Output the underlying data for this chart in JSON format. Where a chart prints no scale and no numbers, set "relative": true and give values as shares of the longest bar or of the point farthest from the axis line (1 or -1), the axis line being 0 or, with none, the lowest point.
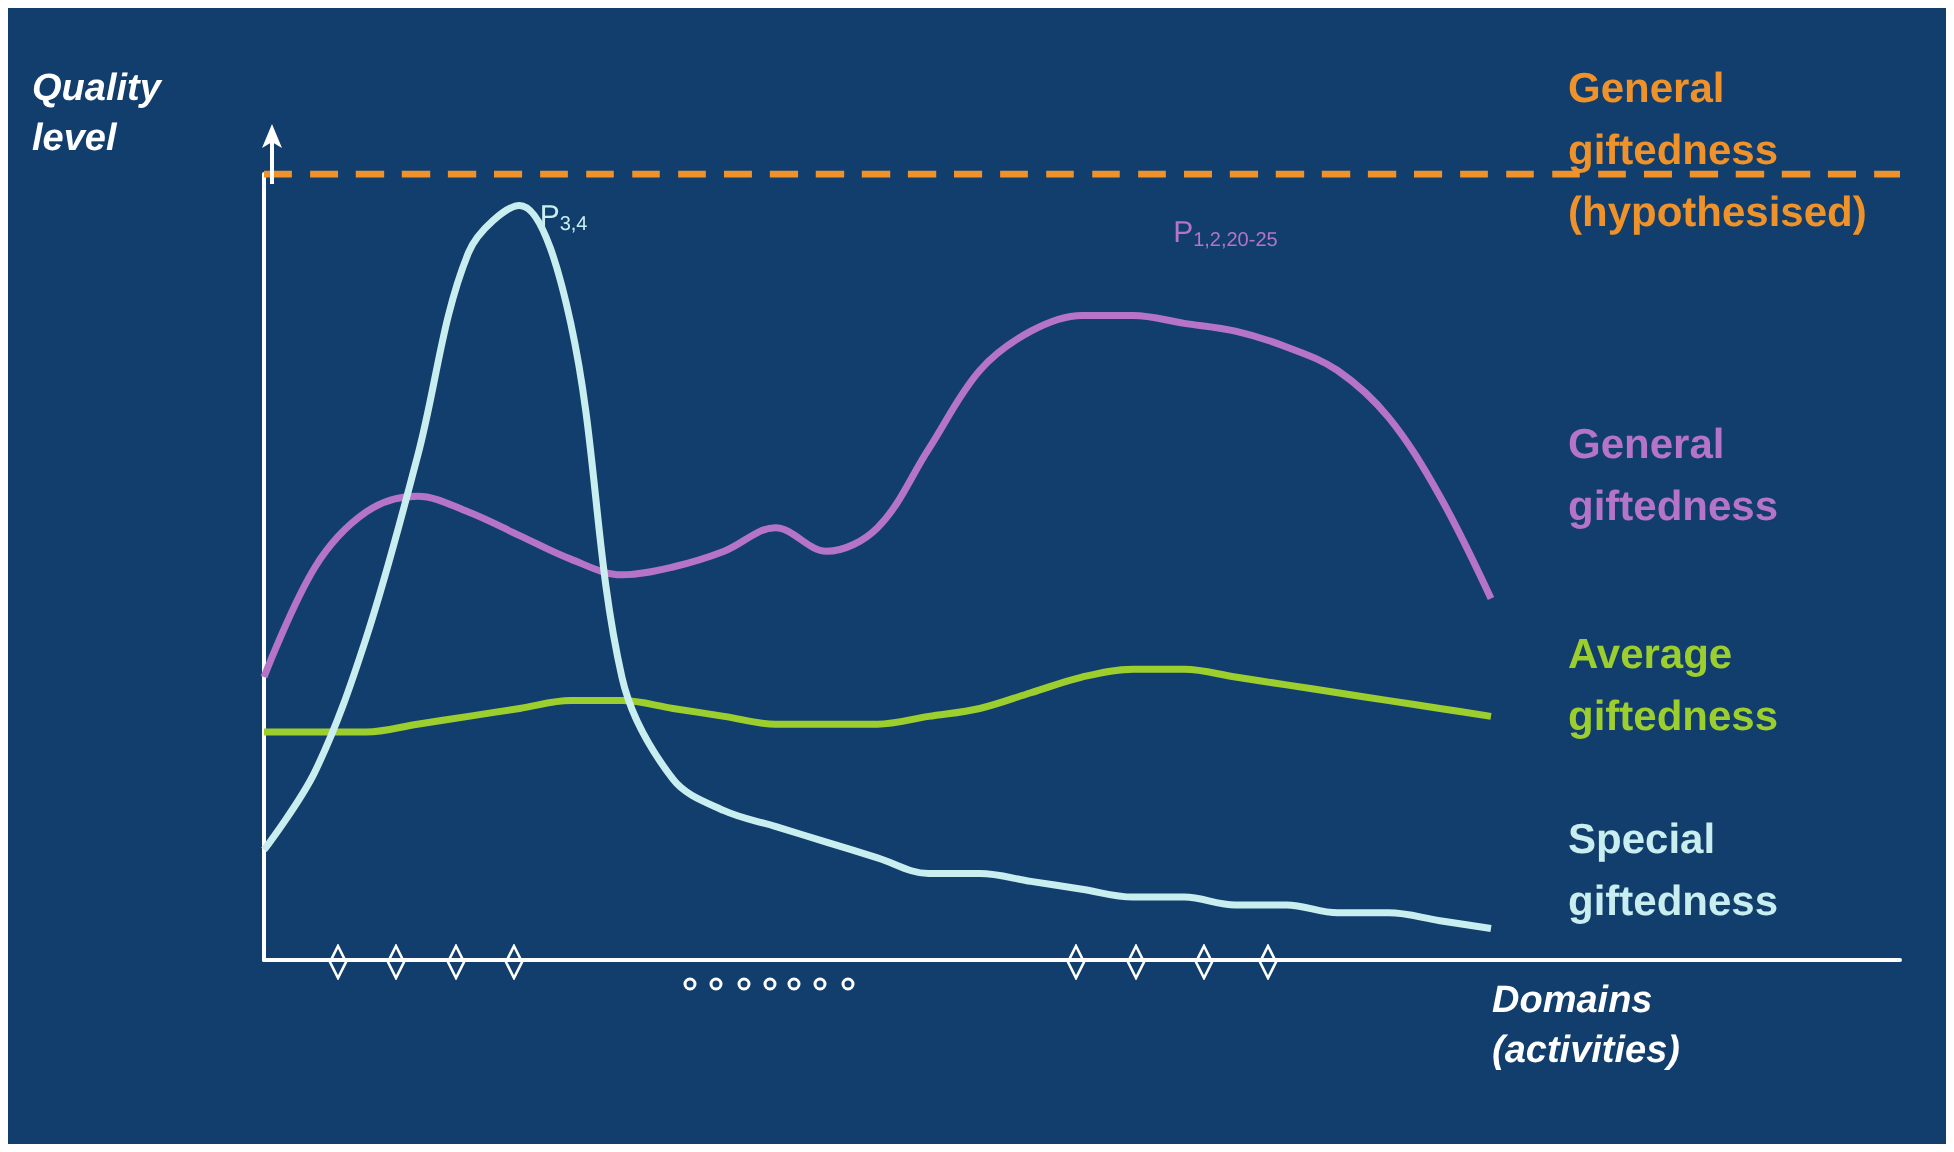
{
  "chart_data": {
    "type": "line",
    "relative": true,
    "xlabel": "Domains (activities)",
    "ylabel": "Quality level",
    "legend": false,
    "grid": false,
    "marker": "none",
    "categories": [
      null,
      null,
      null,
      null,
      null,
      null,
      null,
      null,
      null,
      null,
      null,
      null,
      null,
      null,
      null,
      null,
      null,
      null,
      null,
      null,
      null,
      null,
      null,
      null,
      null,
      null,
      null,
      null,
      null,
      null,
      null,
      null,
      null
    ],
    "series": [
      {
        "name": "General giftedness (hypothesised)",
        "color": "#f0922a",
        "line_style": "dashed",
        "values": [
          1,
          1,
          1,
          1,
          1,
          1,
          1,
          1,
          1,
          1,
          1,
          1,
          1,
          1,
          1,
          1,
          1,
          1,
          1,
          1,
          1,
          1,
          1,
          1,
          1,
          1,
          1,
          1,
          1,
          1,
          1,
          1,
          1
        ]
      },
      {
        "name": "General giftedness",
        "color": "#b574c8",
        "values": [
          0.36,
          0.5,
          0.57,
          0.59,
          0.57,
          0.54,
          0.51,
          0.49,
          0.5,
          0.52,
          0.55,
          0.52,
          0.55,
          0.65,
          0.75,
          0.8,
          0.82,
          0.82,
          0.81,
          0.8,
          0.78,
          0.75,
          0.69,
          0.59,
          0.46,
          null,
          null,
          null,
          null,
          null,
          null,
          null,
          null
        ]
      },
      {
        "name": "Average giftedness",
        "color": "#9ccf2e",
        "values": [
          0.29,
          0.29,
          0.29,
          0.3,
          0.31,
          0.32,
          0.33,
          0.33,
          0.32,
          0.31,
          0.3,
          0.3,
          0.3,
          0.31,
          0.32,
          0.34,
          0.36,
          0.37,
          0.37,
          0.36,
          0.35,
          0.34,
          0.33,
          0.32,
          0.31,
          null,
          null,
          null,
          null,
          null,
          null,
          null,
          null
        ]
      },
      {
        "name": "Special giftedness",
        "color": "#c9eef0",
        "values": [
          0.14,
          0.24,
          0.41,
          0.64,
          0.9,
          0.96,
          0.81,
          0.36,
          0.23,
          0.19,
          0.17,
          0.15,
          0.13,
          0.11,
          0.11,
          0.1,
          0.09,
          0.08,
          0.08,
          0.07,
          0.07,
          0.06,
          0.06,
          0.05,
          0.04,
          null,
          null,
          null,
          null,
          null,
          null,
          null,
          null
        ]
      }
    ],
    "annotations": [
      "P$_{3,4}$",
      "P$_{1,2,20-25}$"
    ]
  }
}
